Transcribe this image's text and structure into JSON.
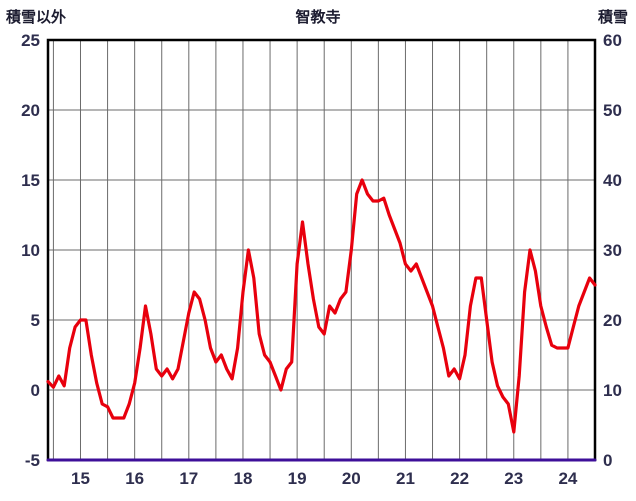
{
  "header": {
    "left_label": "積雪以外",
    "title": "智教寺",
    "right_label": "積雪"
  },
  "colors": {
    "background": "#ffffff",
    "temp_line": "#e8000d",
    "snow_line": "#3d0f99",
    "grid": "#6b6b6b",
    "border": "#000000",
    "tick_text": "#2e2e4e"
  },
  "chart_data": {
    "type": "line",
    "title": "智教寺",
    "left_axis": {
      "label": "積雪以外",
      "min": -5,
      "max": 25,
      "step": 5,
      "tick_labels": [
        "-5",
        "0",
        "5",
        "10",
        "15",
        "20",
        "25"
      ]
    },
    "right_axis": {
      "label": "積雪",
      "min": 0,
      "max": 60,
      "step": 10,
      "tick_labels": [
        "0",
        "10",
        "20",
        "30",
        "40",
        "50",
        "60"
      ]
    },
    "x_axis": {
      "min": 14.4,
      "max": 24.5,
      "tick_start": 15,
      "tick_end": 24,
      "tick_step": 1,
      "grid_step": 0.5,
      "tick_labels": [
        "15",
        "16",
        "17",
        "18",
        "19",
        "20",
        "21",
        "22",
        "23",
        "24"
      ]
    },
    "grid": true,
    "legend": "none",
    "series": [
      {
        "name": "積雪以外",
        "axis": "left",
        "color": "#e8000d",
        "width": 3.2,
        "x_start": 14.4,
        "x_step": 0.1,
        "values": [
          0.6,
          0.2,
          1.0,
          0.3,
          3.0,
          4.5,
          5.0,
          5.0,
          2.5,
          0.5,
          -1.0,
          -1.2,
          -2.0,
          -2.0,
          -2.0,
          -1.0,
          0.5,
          3.0,
          6.0,
          4.0,
          1.5,
          1.0,
          1.5,
          0.8,
          1.5,
          3.5,
          5.5,
          7.0,
          6.5,
          5.0,
          3.0,
          2.0,
          2.5,
          1.5,
          0.8,
          3.0,
          7.0,
          10.0,
          8.0,
          4.0,
          2.5,
          2.0,
          1.0,
          0.0,
          1.5,
          2.0,
          9.0,
          12.0,
          9.0,
          6.5,
          4.5,
          4.0,
          6.0,
          5.5,
          6.5,
          7.0,
          10.0,
          14.0,
          15.0,
          14.0,
          13.5,
          13.5,
          13.7,
          12.5,
          11.5,
          10.5,
          9.0,
          8.5,
          9.0,
          8.0,
          7.0,
          6.0,
          4.5,
          3.0,
          1.0,
          1.5,
          0.8,
          2.5,
          6.0,
          8.0,
          8.0,
          5.0,
          2.0,
          0.3,
          -0.5,
          -1.0,
          -3.0,
          1.0,
          7.0,
          10.0,
          8.5,
          6.0,
          4.5,
          3.2,
          3.0,
          3.0,
          3.0,
          4.5,
          6.0,
          7.0,
          8.0,
          7.5
        ]
      },
      {
        "name": "積雪",
        "axis": "right",
        "color": "#3d0f99",
        "width": 3.0,
        "x": [
          14.4,
          24.5
        ],
        "values": [
          0,
          0
        ]
      }
    ]
  }
}
